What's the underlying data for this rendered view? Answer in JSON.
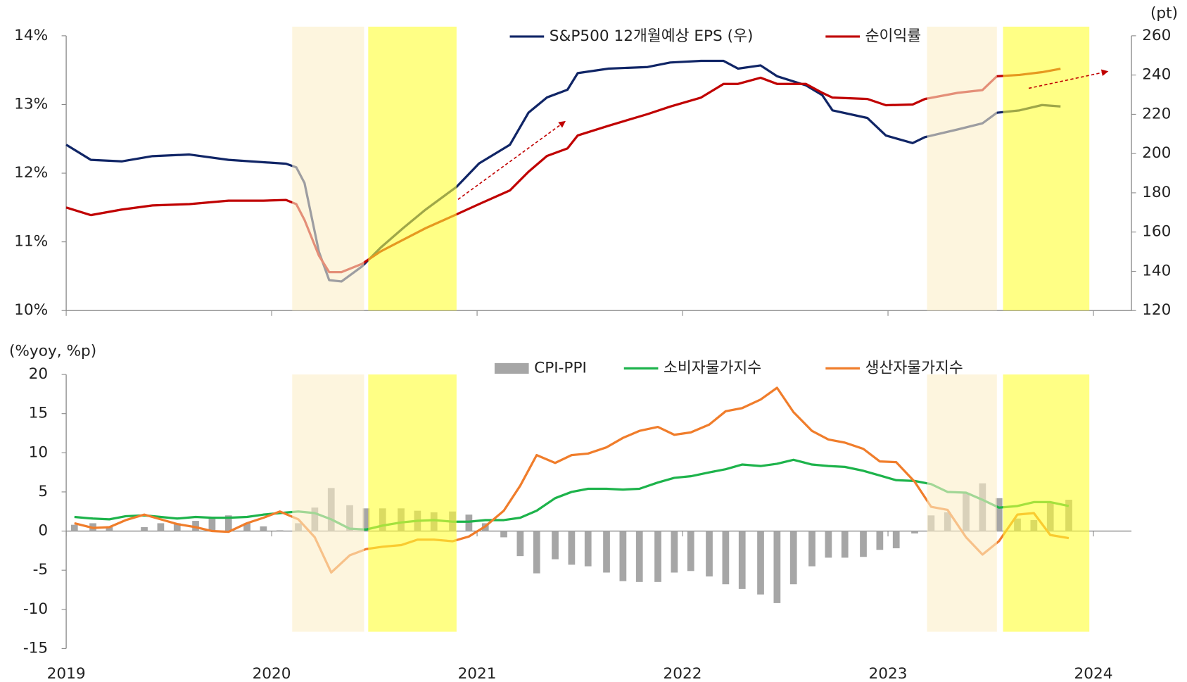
{
  "chart_data": [
    {
      "type": "line",
      "y_label": "(pt)",
      "x": [
        2019.0,
        2019.12,
        2019.27,
        2019.42,
        2019.6,
        2019.79,
        2019.96,
        2020.07,
        2020.12,
        2020.16,
        2020.23,
        2020.28,
        2020.34,
        2020.44,
        2020.53,
        2020.64,
        2020.75,
        2020.9,
        2021.01,
        2021.16,
        2021.25,
        2021.34,
        2021.44,
        2021.49,
        2021.64,
        2021.83,
        2021.94,
        2022.09,
        2022.2,
        2022.27,
        2022.38,
        2022.46,
        2022.6,
        2022.68,
        2022.73,
        2022.9,
        2022.99,
        2023.12,
        2023.18,
        2023.34,
        2023.46,
        2023.53,
        2023.64,
        2023.75,
        2023.84
      ],
      "xlim": [
        2019,
        2024.185
      ],
      "xticks": [
        2019,
        2020,
        2021,
        2022,
        2023,
        2024
      ],
      "ylim": [
        10,
        14
      ],
      "yticks": [
        {
          "value": 10,
          "label": "10%"
        },
        {
          "value": 11,
          "label": "11%"
        },
        {
          "value": 12,
          "label": "12%"
        },
        {
          "value": 13,
          "label": "13%"
        },
        {
          "value": 14,
          "label": "14%"
        }
      ],
      "y2lim": [
        120,
        260
      ],
      "y2ticks": [
        120,
        140,
        160,
        180,
        200,
        220,
        240,
        260
      ],
      "series": [
        {
          "name": "S&P500 12개월예상 EPS (우)",
          "color": "#102566",
          "axis": "y2",
          "values": [
            204.5,
            196.8,
            196,
            198.7,
            199.5,
            196.8,
            195.6,
            194.8,
            193,
            185,
            150,
            135.5,
            134.8,
            142.5,
            152,
            162,
            171.5,
            183,
            195,
            204.5,
            220.8,
            228.6,
            232.5,
            241,
            243.3,
            244.1,
            246.4,
            247.2,
            247.2,
            243.3,
            244.9,
            239.4,
            234.8,
            229.8,
            222,
            218.1,
            209.2,
            205.3,
            208.4,
            212.3,
            215.4,
            220.8,
            222,
            224.7,
            224
          ]
        },
        {
          "name": "순이익률",
          "color": "#c00000",
          "values": [
            11.5,
            11.39,
            11.47,
            11.53,
            11.55,
            11.6,
            11.6,
            11.61,
            11.55,
            11.32,
            10.8,
            10.56,
            10.56,
            10.68,
            10.86,
            11.03,
            11.2,
            11.4,
            11.55,
            11.75,
            12.02,
            12.25,
            12.36,
            12.55,
            12.69,
            12.86,
            12.97,
            13.1,
            13.3,
            13.3,
            13.39,
            13.3,
            13.3,
            13.17,
            13.1,
            13.08,
            12.99,
            13.0,
            13.08,
            13.17,
            13.21,
            13.41,
            13.43,
            13.47,
            13.52
          ]
        }
      ]
    },
    {
      "type": "bar_line",
      "y_label": "(%yoy, %p)",
      "x": [
        2019.04,
        2019.13,
        2019.21,
        2019.29,
        2019.38,
        2019.46,
        2019.54,
        2019.63,
        2019.71,
        2019.79,
        2019.88,
        2019.96,
        2020.04,
        2020.13,
        2020.21,
        2020.29,
        2020.38,
        2020.46,
        2020.54,
        2020.63,
        2020.71,
        2020.79,
        2020.88,
        2020.96,
        2021.04,
        2021.13,
        2021.21,
        2021.29,
        2021.38,
        2021.46,
        2021.54,
        2021.63,
        2021.71,
        2021.79,
        2021.88,
        2021.96,
        2022.04,
        2022.13,
        2022.21,
        2022.29,
        2022.38,
        2022.46,
        2022.54,
        2022.63,
        2022.71,
        2022.79,
        2022.88,
        2022.96,
        2023.04,
        2023.13,
        2023.21,
        2023.29,
        2023.38,
        2023.46,
        2023.54,
        2023.63,
        2023.71,
        2023.79,
        2023.88
      ],
      "xlim": [
        2019,
        2024.185
      ],
      "xticks": [
        2019,
        2020,
        2021,
        2022,
        2023,
        2024
      ],
      "ylim": [
        -15,
        20
      ],
      "yticks": [
        -15,
        -10,
        -5,
        0,
        5,
        10,
        15,
        20
      ],
      "series": [
        {
          "name": "CPI-PPI",
          "color": "#a6a6a6",
          "kind": "bar",
          "values": [
            0.8,
            1.0,
            0.5,
            0,
            0.5,
            1.0,
            1.0,
            1.3,
            1.7,
            2.0,
            1.0,
            0.6,
            0.1,
            1.0,
            3.0,
            5.5,
            3.3,
            2.9,
            2.9,
            2.9,
            2.6,
            2.4,
            2.5,
            2.1,
            1.0,
            -0.8,
            -3.2,
            -5.4,
            -3.6,
            -4.3,
            -4.5,
            -5.3,
            -6.4,
            -6.5,
            -6.5,
            -5.3,
            -5.1,
            -5.8,
            -6.8,
            -7.4,
            -8.1,
            -9.2,
            -6.8,
            -4.5,
            -3.4,
            -3.4,
            -3.3,
            -2.4,
            -2.2,
            -0.3,
            2.0,
            2.4,
            4.9,
            6.1,
            4.2,
            1.6,
            1.4,
            3.6,
            4.0
          ]
        },
        {
          "name": "소비자물가지수",
          "color": "#1db34b",
          "kind": "line",
          "values": [
            1.8,
            1.6,
            1.5,
            1.9,
            2.0,
            1.8,
            1.6,
            1.8,
            1.7,
            1.7,
            1.8,
            2.1,
            2.3,
            2.5,
            2.3,
            1.5,
            0.3,
            0.2,
            0.7,
            1.1,
            1.3,
            1.4,
            1.2,
            1.2,
            1.4,
            1.4,
            1.7,
            2.6,
            4.2,
            5.0,
            5.4,
            5.4,
            5.3,
            5.4,
            6.2,
            6.8,
            7.0,
            7.5,
            7.9,
            8.5,
            8.3,
            8.6,
            9.1,
            8.5,
            8.3,
            8.2,
            7.7,
            7.1,
            6.5,
            6.4,
            6.0,
            5.0,
            4.9,
            4.0,
            3.0,
            3.2,
            3.7,
            3.7,
            3.2
          ]
        },
        {
          "name": "생산자물가지수",
          "color": "#f07d2b",
          "kind": "line",
          "values": [
            1.0,
            0.4,
            0.5,
            1.4,
            2.1,
            1.5,
            0.9,
            0.5,
            0,
            -0.1,
            1.0,
            1.7,
            2.5,
            1.5,
            -0.8,
            -5.3,
            -3.1,
            -2.3,
            -2.0,
            -1.8,
            -1.1,
            -1.1,
            -1.3,
            -0.7,
            0.6,
            2.6,
            5.8,
            9.7,
            8.7,
            9.7,
            9.9,
            10.7,
            11.9,
            12.8,
            13.3,
            12.3,
            12.6,
            13.6,
            15.3,
            15.7,
            16.8,
            18.3,
            15.2,
            12.8,
            11.7,
            11.3,
            10.5,
            8.9,
            8.8,
            6.3,
            3.1,
            2.7,
            -0.8,
            -3.0,
            -1.3,
            2.1,
            2.3,
            -0.5,
            -0.9
          ]
        }
      ]
    }
  ],
  "highlights": [
    {
      "from": 2020.1,
      "to": 2020.45,
      "color": "#fbeec8"
    },
    {
      "from": 2020.47,
      "to": 2020.9,
      "color": "#ffff33"
    },
    {
      "from": 2023.19,
      "to": 2023.53,
      "color": "#fbeec8"
    },
    {
      "from": 2023.56,
      "to": 2023.98,
      "color": "#ffff33"
    }
  ]
}
